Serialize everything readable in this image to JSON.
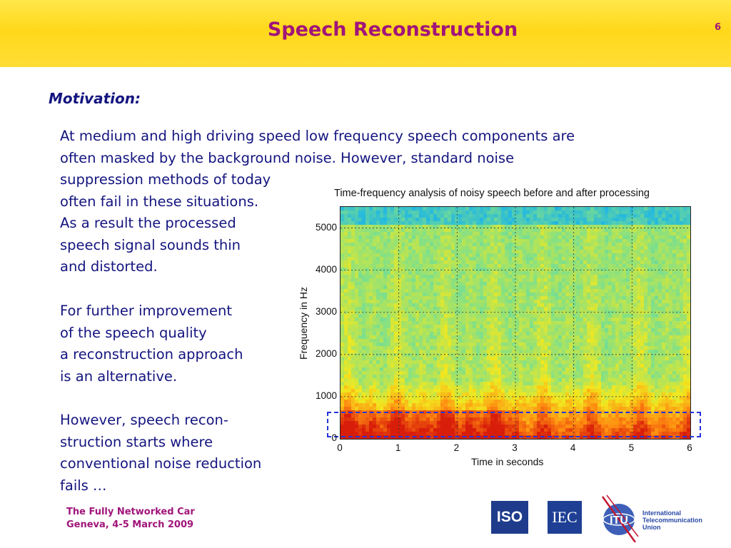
{
  "slide": {
    "title": "Speech Reconstruction",
    "page_number": "6"
  },
  "content": {
    "heading": "Motivation:",
    "paragraph1": [
      "At medium and high driving speed low frequency speech components are",
      "often masked by the background noise. However, standard noise",
      "suppression methods of today",
      "often fail in these situations.",
      "As a result the processed",
      "speech signal sounds thin",
      "and distorted."
    ],
    "paragraph2": [
      "For further improvement",
      "of the speech quality",
      "a reconstruction approach",
      "is an alternative."
    ],
    "paragraph3": [
      "However, speech recon-",
      "struction starts where",
      "conventional noise reduction",
      "fails …"
    ]
  },
  "chart_data": {
    "type": "heatmap",
    "title": "Time-frequency analysis of noisy speech before and after processing",
    "xlabel": "Time in seconds",
    "ylabel": "Frequency in Hz",
    "xlim": [
      0,
      6
    ],
    "ylim": [
      0,
      5500
    ],
    "x_ticks": [
      "0",
      "1",
      "2",
      "3",
      "4",
      "5",
      "6"
    ],
    "y_ticks": [
      "0",
      "1000",
      "2000",
      "3000",
      "4000",
      "5000"
    ],
    "grid": true,
    "highlight_region": {
      "x": [
        0,
        6
      ],
      "y": [
        0,
        700
      ],
      "style": "dashed blue"
    },
    "colormap": [
      "#1e3dc8",
      "#22b8e0",
      "#7fe08a",
      "#f2e81e",
      "#ff8a10",
      "#d81c0a"
    ]
  },
  "footer": {
    "line1": "The Fully Networked Car",
    "line2": "Geneva, 4-5 March 2009"
  },
  "logos": {
    "iso": "ISO",
    "iec": "IEC",
    "itu": "ITU",
    "itu_name": [
      "International",
      "Telecommunication",
      "Union"
    ]
  }
}
